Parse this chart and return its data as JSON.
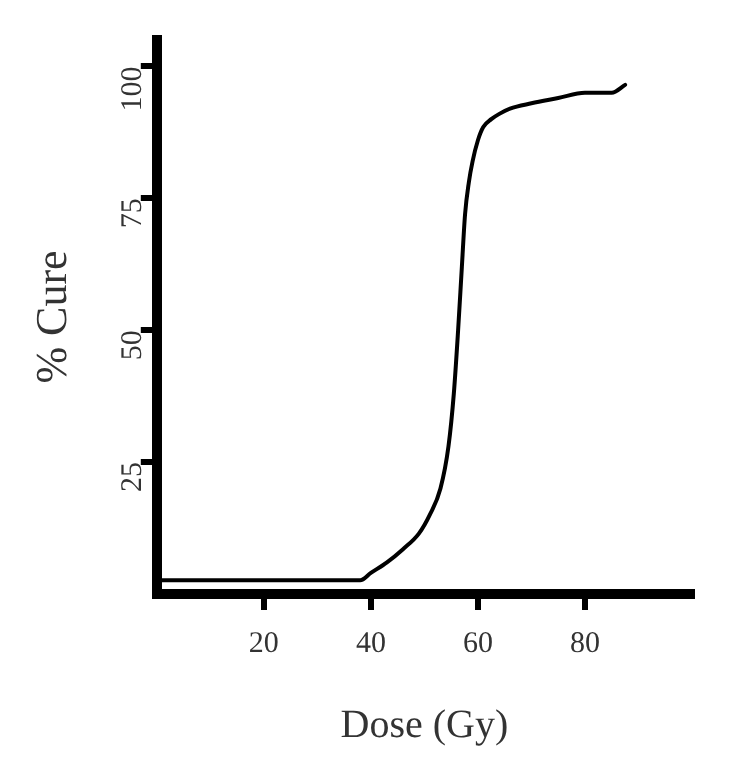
{
  "chart_data": {
    "type": "line",
    "xlabel": "Dose (Gy)",
    "ylabel": "% Cure",
    "x": [
      0.6,
      38,
      40,
      43,
      46,
      49,
      51,
      53,
      54.5,
      55.5,
      56.3,
      57,
      57.6,
      58.3,
      59,
      60,
      61,
      62.5,
      64,
      66,
      70,
      75,
      80,
      85,
      87.5
    ],
    "series": [
      {
        "color": "#000000",
        "values": [
          2.6,
          2.6,
          4,
          6,
          8.5,
          11.5,
          15,
          20,
          28,
          38,
          50,
          62,
          72,
          78,
          82,
          86,
          88.5,
          90,
          91,
          92,
          93,
          94,
          95,
          95,
          96.5
        ]
      }
    ],
    "xlim": [
      0,
      100
    ],
    "ylim": [
      0,
      105
    ],
    "xticks": [
      20,
      40,
      60,
      80
    ],
    "yticks": [
      25,
      50,
      75,
      100
    ],
    "grid": false,
    "legend": false,
    "marker": "none",
    "line_style": "solid"
  }
}
